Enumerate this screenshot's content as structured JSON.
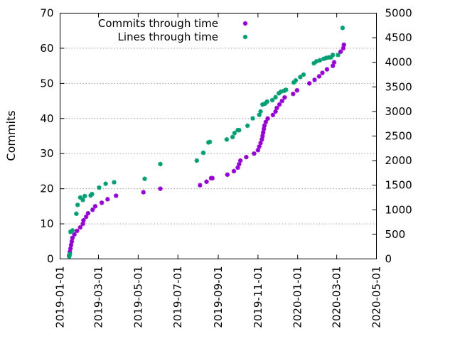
{
  "chart_data": {
    "type": "scatter",
    "title": "",
    "xlabel": "",
    "ylabel": "Commits",
    "y2label": "",
    "x_ticks": [
      "2019-01-01",
      "2019-03-01",
      "2019-05-01",
      "2019-07-01",
      "2019-09-01",
      "2019-11-01",
      "2020-01-01",
      "2020-03-01",
      "2020-05-01"
    ],
    "xlim": [
      "2019-01-01",
      "2020-05-01"
    ],
    "ylim": [
      0,
      70
    ],
    "y_ticks": [
      0,
      10,
      20,
      30,
      40,
      50,
      60,
      70
    ],
    "y2lim": [
      0,
      5000
    ],
    "y2_ticks": [
      0,
      500,
      1000,
      1500,
      2000,
      2500,
      3000,
      3500,
      4000,
      4500,
      5000
    ],
    "grid": "horizontal dotted",
    "legend_position": "top-left",
    "colors": {
      "commits": "#9400d3",
      "lines": "#009e73"
    },
    "series": [
      {
        "name": "Commits through time",
        "axis": "left",
        "x": [
          "2019-01-15",
          "2019-01-16",
          "2019-01-17",
          "2019-01-18",
          "2019-01-19",
          "2019-01-20",
          "2019-01-23",
          "2019-01-27",
          "2019-02-01",
          "2019-02-05",
          "2019-02-06",
          "2019-02-10",
          "2019-02-13",
          "2019-02-20",
          "2019-02-24",
          "2019-03-06",
          "2019-03-15",
          "2019-03-28",
          "2019-05-09",
          "2019-06-04",
          "2019-08-04",
          "2019-08-14",
          "2019-08-21",
          "2019-08-23",
          "2019-09-15",
          "2019-09-25",
          "2019-10-01",
          "2019-10-03",
          "2019-10-05",
          "2019-10-14",
          "2019-10-26",
          "2019-11-01",
          "2019-11-03",
          "2019-11-05",
          "2019-11-07",
          "2019-11-08",
          "2019-11-09",
          "2019-11-10",
          "2019-11-11",
          "2019-11-13",
          "2019-11-16",
          "2019-11-24",
          "2019-11-28",
          "2019-11-30",
          "2019-12-04",
          "2019-12-08",
          "2019-12-12",
          "2019-12-25",
          "2019-12-31",
          "2020-01-19",
          "2020-01-27",
          "2020-02-03",
          "2020-02-08",
          "2020-02-15",
          "2020-02-24",
          "2020-02-26",
          "2020-03-07",
          "2020-03-11",
          "2020-03-12"
        ],
        "values": [
          1,
          2,
          3,
          4,
          5,
          6,
          7,
          8,
          9,
          10,
          11,
          12,
          13,
          14,
          15,
          16,
          17,
          18,
          19,
          20,
          21,
          22,
          23,
          23,
          24,
          25,
          26,
          27,
          28,
          29,
          30,
          31,
          32,
          33,
          34,
          35,
          36,
          37,
          38,
          39,
          40,
          41,
          42,
          43,
          44,
          45,
          46,
          47,
          48,
          50,
          51,
          52,
          53,
          54,
          55,
          56,
          59,
          60,
          61
        ]
      },
      {
        "name": "Lines through time",
        "axis": "right",
        "x": [
          "2019-01-15",
          "2019-01-16",
          "2019-01-17",
          "2019-01-20",
          "2019-01-26",
          "2019-01-28",
          "2019-02-01",
          "2019-02-05",
          "2019-02-08",
          "2019-02-17",
          "2019-02-19",
          "2019-03-02",
          "2019-03-12",
          "2019-03-25",
          "2019-05-11",
          "2019-06-04",
          "2019-07-30",
          "2019-08-09",
          "2019-08-17",
          "2019-08-19",
          "2019-09-14",
          "2019-09-23",
          "2019-09-26",
          "2019-10-01",
          "2019-10-03",
          "2019-10-16",
          "2019-10-24",
          "2019-11-03",
          "2019-11-05",
          "2019-11-08",
          "2019-11-12",
          "2019-11-15",
          "2019-11-23",
          "2019-11-28",
          "2019-12-03",
          "2019-12-06",
          "2019-12-11",
          "2019-12-14",
          "2019-12-26",
          "2019-12-29",
          "2020-01-05",
          "2020-01-10",
          "2020-01-26",
          "2020-01-30",
          "2020-02-04",
          "2020-02-10",
          "2020-02-14",
          "2020-02-18",
          "2020-02-21",
          "2020-02-24",
          "2020-03-03",
          "2020-03-10"
        ],
        "values": [
          50,
          100,
          550,
          580,
          920,
          1100,
          1250,
          1200,
          1280,
          1290,
          1320,
          1450,
          1530,
          1560,
          1630,
          1930,
          2000,
          2160,
          2370,
          2380,
          2430,
          2480,
          2560,
          2620,
          2620,
          2710,
          2860,
          2930,
          3000,
          3140,
          3160,
          3200,
          3230,
          3290,
          3370,
          3400,
          3420,
          3440,
          3590,
          3630,
          3700,
          3750,
          3980,
          4020,
          4040,
          4070,
          4090,
          4100,
          4100,
          4150,
          4150,
          4700
        ]
      }
    ]
  }
}
